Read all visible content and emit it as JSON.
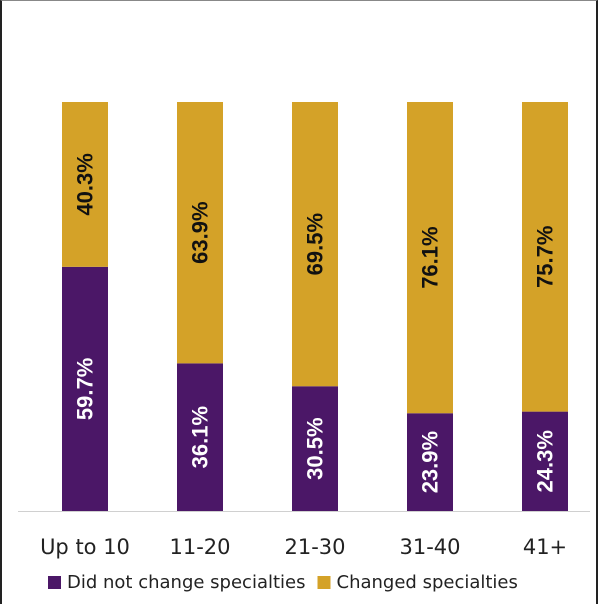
{
  "chart_data": {
    "type": "bar",
    "stacked": true,
    "percent": true,
    "categories": [
      "Up to 10",
      "11-20",
      "21-30",
      "31-40",
      "41+"
    ],
    "series": [
      {
        "name": "Did not change specialties",
        "values": [
          59.7,
          36.1,
          30.5,
          23.9,
          24.3
        ],
        "labels": [
          "59.7%",
          "36.1%",
          "30.5%",
          "23.9%",
          "24.3%"
        ],
        "color": "#4b1767",
        "label_color": "#ffffff"
      },
      {
        "name": "Changed specialties",
        "values": [
          40.3,
          63.9,
          69.5,
          76.1,
          75.7
        ],
        "labels": [
          "40.3%",
          "63.9%",
          "69.5%",
          "76.1%",
          "75.7%"
        ],
        "color": "#d4a228",
        "label_color": "#111111"
      }
    ],
    "ylim": [
      0,
      100
    ],
    "legend_position": "bottom",
    "grid": false
  }
}
